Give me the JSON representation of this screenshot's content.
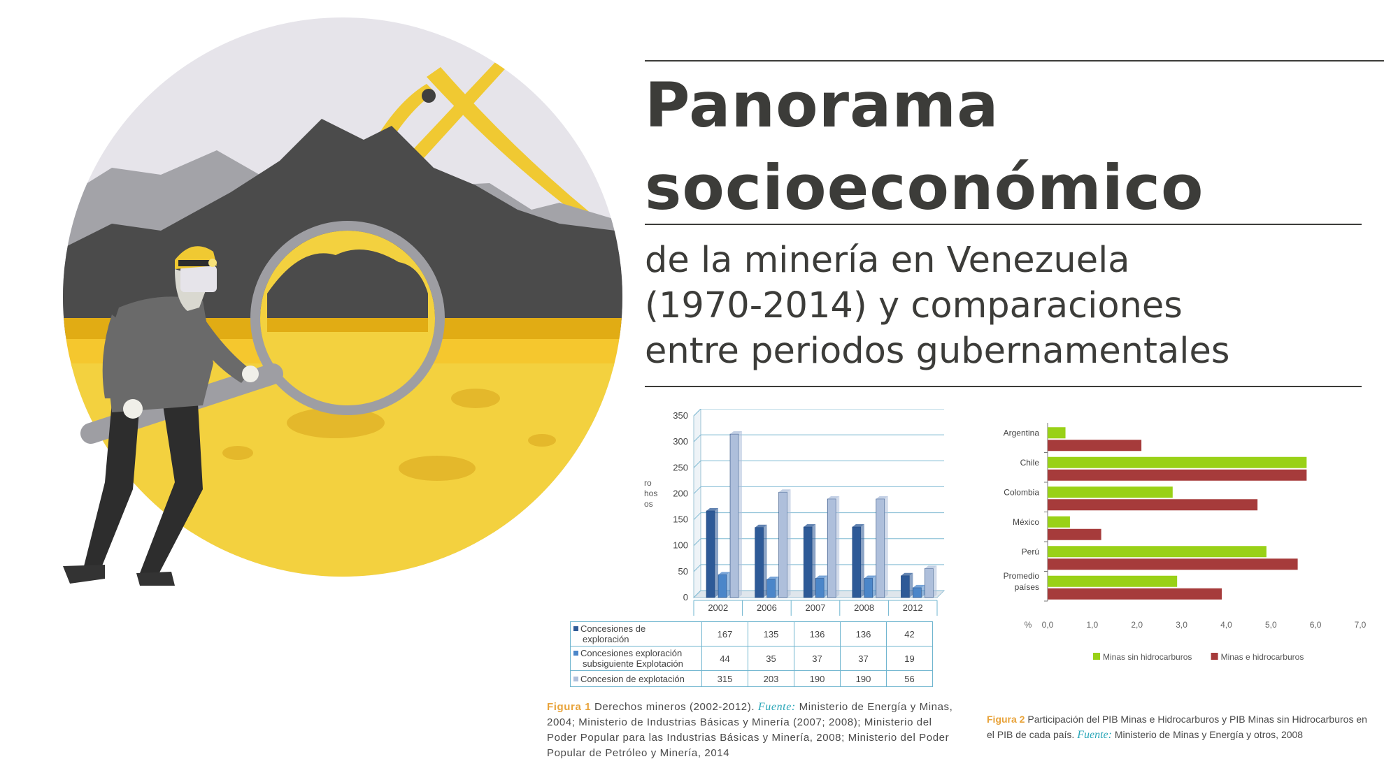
{
  "title": {
    "line1": "Panorama",
    "line2": "socioeconómico",
    "subtitle_line1": "de la minería en Venezuela",
    "subtitle_line2": "(1970-2014) y comparaciones",
    "subtitle_line3": "entre periodos gubernamentales"
  },
  "illustration": {
    "icon": "miner-with-magnifying-glass-icon"
  },
  "colors": {
    "text_dark": "#3c3c39",
    "accent_yellow": "#f3d13f",
    "caption_orange": "#e8a33a",
    "source_teal": "#2aa6b8",
    "bar_dark_blue": "#2e5a97",
    "bar_mid_blue": "#4b86c9",
    "bar_light_blue": "#aebfdb",
    "bar_green": "#99d117",
    "bar_red": "#a63b3b"
  },
  "figure1": {
    "caption_label": "Figura 1",
    "caption_text": "Derechos mineros (2002-2012).",
    "caption_source_label": "Fuente:",
    "caption_source_line1": "Ministerio de Energía y Minas,",
    "caption_line2": "2004; Ministerio de Industrias Básicas y Minería (2007; 2008); Ministerio del",
    "caption_line3": "Poder Popular para las Industrias Básicas y Minería, 2008; Ministerio del Poder",
    "caption_line4": "Popular de Petróleo y Minería, 2014",
    "ylabel_fragments": [
      "ro",
      "hos",
      "os"
    ],
    "chart_data": {
      "type": "bar",
      "categories": [
        "2002",
        "2006",
        "2007",
        "2008",
        "2012"
      ],
      "series": [
        {
          "name": "Concesiones de exploración",
          "values": [
            167,
            135,
            136,
            136,
            42
          ]
        },
        {
          "name": "Concesiones exploración subsiguiente Explotación",
          "values": [
            44,
            35,
            37,
            37,
            19
          ]
        },
        {
          "name": "Concesion de explotación",
          "values": [
            315,
            203,
            190,
            190,
            56
          ]
        }
      ],
      "yticks": [
        "0",
        "50",
        "100",
        "150",
        "200",
        "250",
        "300",
        "350"
      ],
      "ylim": [
        0,
        350
      ],
      "grid": true,
      "legend": "data-table-below"
    },
    "table_rows": [
      {
        "label_line1": "Concesiones de",
        "label_line2": "exploración",
        "values": [
          "167",
          "135",
          "136",
          "136",
          "42"
        ]
      },
      {
        "label_line1": "Concesiones exploración",
        "label_line2": "subsiguiente Explotación",
        "values": [
          "44",
          "35",
          "37",
          "37",
          "19"
        ]
      },
      {
        "label_line1": "Concesion de explotación",
        "label_line2": "",
        "values": [
          "315",
          "203",
          "190",
          "190",
          "56"
        ]
      }
    ]
  },
  "figure2": {
    "caption_label": "Figura 2",
    "caption_text": "Participación del PIB Minas e Hidrocarburos y PIB Minas sin Hidrocarburos en",
    "caption_line2": "el PIB de cada país.",
    "caption_source_label": "Fuente:",
    "caption_source_text": "Ministerio de Minas y Energía y otros, 2008",
    "chart_data": {
      "type": "bar",
      "orientation": "horizontal",
      "categories": [
        "Argentina",
        "Chile",
        "Colombia",
        "México",
        "Perú",
        "Promedio países"
      ],
      "category_lines": [
        [
          "Argentina"
        ],
        [
          "Chile"
        ],
        [
          "Colombia"
        ],
        [
          "México"
        ],
        [
          "Perú"
        ],
        [
          "Promedio",
          "países"
        ]
      ],
      "series": [
        {
          "name": "Minas sin hidrocarburos",
          "values": [
            0.4,
            5.8,
            2.8,
            0.5,
            4.9,
            2.9
          ]
        },
        {
          "name": "Minas e hidrocarburos",
          "values": [
            2.1,
            5.8,
            4.7,
            1.2,
            5.6,
            3.9
          ]
        }
      ],
      "xunit": "%",
      "xticks": [
        "0,0",
        "1,0",
        "2,0",
        "3,0",
        "4,0",
        "5,0",
        "6,0",
        "7,0"
      ],
      "xlim": [
        0,
        7
      ],
      "grid": false,
      "legend": "bottom"
    }
  }
}
